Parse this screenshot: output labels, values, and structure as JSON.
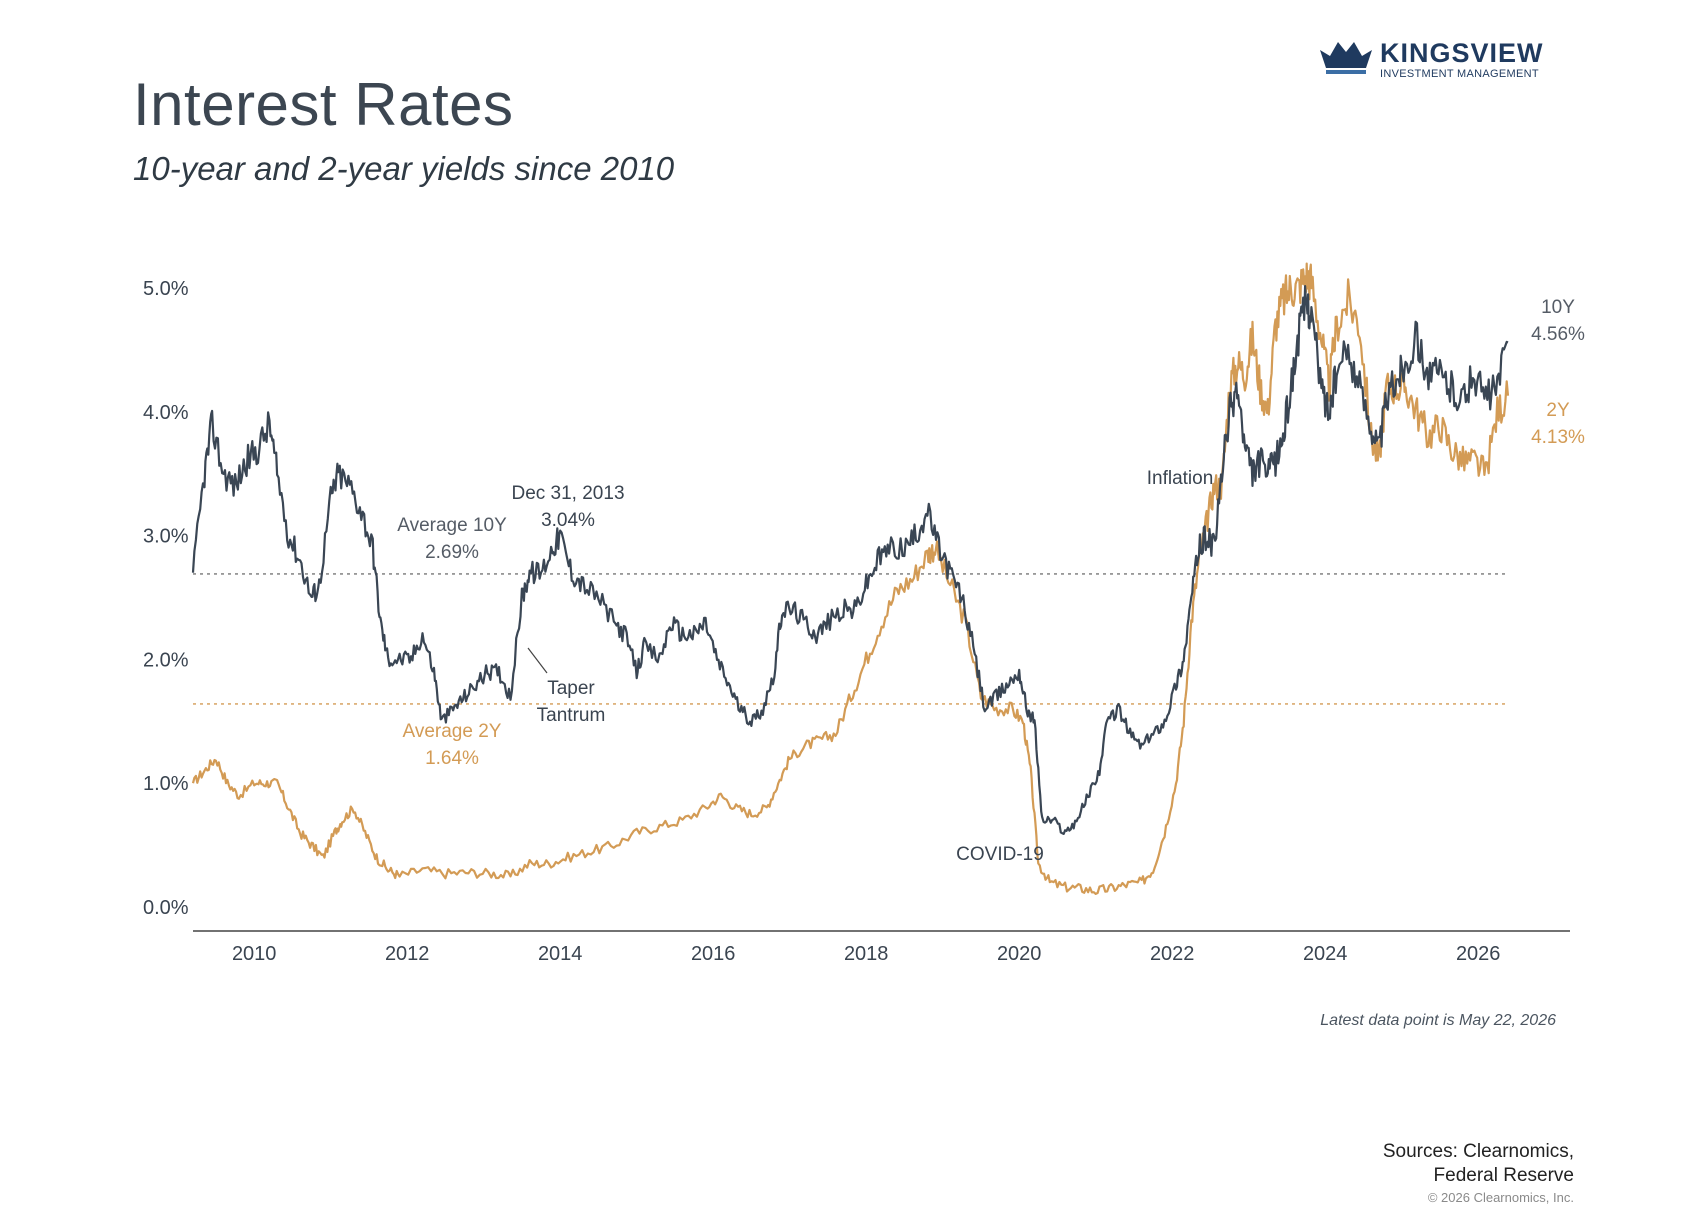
{
  "header": {
    "title": "Interest Rates",
    "subtitle": "10-year and 2-year yields since 2010"
  },
  "logo": {
    "brand": "KINGSVIEW",
    "tagline": "INVESTMENT MANAGEMENT",
    "color": "#1f3a5f"
  },
  "footer": {
    "note": "Latest data point is May 22, 2026",
    "sources_line1": "Sources: Clearnomics,",
    "sources_line2": "Federal Reserve",
    "copyright": "© 2026 Clearnomics, Inc."
  },
  "chart_data": {
    "type": "line",
    "title": "Interest Rates",
    "subtitle": "10-year and 2-year yields since 2010",
    "xlim": [
      2009.2,
      2027.2
    ],
    "ylim": [
      0,
      5.2
    ],
    "x_ticks": [
      2010,
      2012,
      2014,
      2016,
      2018,
      2020,
      2022,
      2024,
      2026
    ],
    "x_tick_labels": [
      "2010",
      "2012",
      "2014",
      "2016",
      "2018",
      "2020",
      "2022",
      "2024",
      "2026"
    ],
    "y_ticks": [
      0,
      1,
      2,
      3,
      4,
      5
    ],
    "y_tick_labels": [
      "0.0%",
      "1.0%",
      "2.0%",
      "3.0%",
      "4.0%",
      "5.0%"
    ],
    "grid": false,
    "series": [
      {
        "name": "10Y",
        "end_label_name": "10Y",
        "end_label_value": "4.56%",
        "color": "#3a4654",
        "x": [
          2009.2,
          2009.35,
          2009.45,
          2009.6,
          2009.75,
          2009.9,
          2010.05,
          2010.2,
          2010.3,
          2010.45,
          2010.6,
          2010.75,
          2010.85,
          2011.0,
          2011.1,
          2011.25,
          2011.4,
          2011.55,
          2011.65,
          2011.75,
          2011.9,
          2012.05,
          2012.2,
          2012.35,
          2012.45,
          2012.6,
          2012.75,
          2012.9,
          2013.05,
          2013.2,
          2013.35,
          2013.5,
          2013.6,
          2013.75,
          2013.9,
          2014.0,
          2014.15,
          2014.3,
          2014.5,
          2014.7,
          2014.85,
          2015.0,
          2015.1,
          2015.3,
          2015.45,
          2015.6,
          2015.75,
          2015.9,
          2016.05,
          2016.2,
          2016.35,
          2016.5,
          2016.65,
          2016.8,
          2016.9,
          2017.05,
          2017.2,
          2017.35,
          2017.5,
          2017.7,
          2017.85,
          2018.0,
          2018.15,
          2018.3,
          2018.5,
          2018.65,
          2018.8,
          2018.95,
          2019.1,
          2019.25,
          2019.4,
          2019.55,
          2019.7,
          2019.85,
          2020.0,
          2020.1,
          2020.2,
          2020.3,
          2020.45,
          2020.6,
          2020.75,
          2020.9,
          2021.05,
          2021.15,
          2021.3,
          2021.45,
          2021.6,
          2021.75,
          2021.9,
          2022.05,
          2022.15,
          2022.25,
          2022.35,
          2022.45,
          2022.55,
          2022.65,
          2022.75,
          2022.85,
          2022.95,
          2023.05,
          2023.15,
          2023.25,
          2023.35,
          2023.45,
          2023.55,
          2023.65,
          2023.75,
          2023.82,
          2023.95,
          2024.05,
          2024.15,
          2024.3,
          2024.45,
          2024.6,
          2024.7,
          2024.8,
          2024.95,
          2025.05,
          2025.2,
          2025.35,
          2025.5,
          2025.65,
          2025.8,
          2025.95,
          2026.1,
          2026.25,
          2026.39
        ],
        "values": [
          2.7,
          3.5,
          3.9,
          3.5,
          3.4,
          3.6,
          3.7,
          3.9,
          3.5,
          3.0,
          2.8,
          2.5,
          2.6,
          3.3,
          3.5,
          3.4,
          3.2,
          2.9,
          2.3,
          2.0,
          2.0,
          2.0,
          2.2,
          1.9,
          1.5,
          1.6,
          1.7,
          1.8,
          1.9,
          1.9,
          1.7,
          2.5,
          2.7,
          2.7,
          2.9,
          3.0,
          2.7,
          2.6,
          2.5,
          2.3,
          2.2,
          1.9,
          2.1,
          2.0,
          2.3,
          2.2,
          2.2,
          2.3,
          2.0,
          1.8,
          1.6,
          1.5,
          1.6,
          1.9,
          2.4,
          2.4,
          2.3,
          2.2,
          2.3,
          2.4,
          2.4,
          2.6,
          2.8,
          2.9,
          2.9,
          3.0,
          3.2,
          2.9,
          2.7,
          2.5,
          2.1,
          1.6,
          1.7,
          1.8,
          1.9,
          1.6,
          1.5,
          0.7,
          0.7,
          0.6,
          0.7,
          0.9,
          1.1,
          1.5,
          1.6,
          1.4,
          1.3,
          1.4,
          1.5,
          1.8,
          2.0,
          2.5,
          2.9,
          3.0,
          2.9,
          3.5,
          4.0,
          4.2,
          3.7,
          3.5,
          3.6,
          3.5,
          3.6,
          3.8,
          4.2,
          4.6,
          4.9,
          4.8,
          4.2,
          4.0,
          4.3,
          4.5,
          4.2,
          3.9,
          3.7,
          4.1,
          4.3,
          4.4,
          4.6,
          4.3,
          4.3,
          4.2,
          4.1,
          4.3,
          4.1,
          4.2,
          4.56
        ]
      },
      {
        "name": "2Y",
        "end_label_name": "2Y",
        "end_label_value": "4.13%",
        "color": "#d39b55",
        "x": [
          2009.2,
          2009.35,
          2009.5,
          2009.65,
          2009.8,
          2010.0,
          2010.15,
          2010.3,
          2010.45,
          2010.6,
          2010.75,
          2010.9,
          2011.05,
          2011.15,
          2011.3,
          2011.45,
          2011.6,
          2011.75,
          2011.9,
          2012.2,
          2012.5,
          2012.8,
          2013.1,
          2013.35,
          2013.6,
          2013.85,
          2014.1,
          2014.4,
          2014.7,
          2015.0,
          2015.3,
          2015.6,
          2015.9,
          2016.1,
          2016.3,
          2016.5,
          2016.7,
          2016.85,
          2017.0,
          2017.2,
          2017.4,
          2017.6,
          2017.8,
          2018.0,
          2018.2,
          2018.4,
          2018.6,
          2018.8,
          2018.9,
          2019.1,
          2019.3,
          2019.5,
          2019.7,
          2019.9,
          2020.05,
          2020.15,
          2020.25,
          2020.4,
          2020.6,
          2020.8,
          2021.0,
          2021.2,
          2021.4,
          2021.6,
          2021.75,
          2021.9,
          2022.05,
          2022.15,
          2022.25,
          2022.35,
          2022.45,
          2022.55,
          2022.65,
          2022.75,
          2022.85,
          2022.95,
          2023.05,
          2023.15,
          2023.25,
          2023.35,
          2023.45,
          2023.55,
          2023.65,
          2023.75,
          2023.82,
          2023.95,
          2024.05,
          2024.15,
          2024.3,
          2024.45,
          2024.6,
          2024.7,
          2024.8,
          2024.95,
          2025.05,
          2025.2,
          2025.35,
          2025.5,
          2025.65,
          2025.8,
          2025.95,
          2026.1,
          2026.25,
          2026.39
        ],
        "values": [
          1.0,
          1.1,
          1.2,
          1.0,
          0.9,
          1.0,
          1.0,
          1.0,
          0.8,
          0.6,
          0.5,
          0.4,
          0.6,
          0.7,
          0.8,
          0.6,
          0.4,
          0.3,
          0.25,
          0.3,
          0.27,
          0.28,
          0.27,
          0.25,
          0.35,
          0.35,
          0.4,
          0.45,
          0.5,
          0.6,
          0.65,
          0.7,
          0.8,
          0.9,
          0.8,
          0.75,
          0.8,
          1.0,
          1.2,
          1.3,
          1.35,
          1.4,
          1.7,
          2.0,
          2.3,
          2.55,
          2.65,
          2.85,
          2.9,
          2.6,
          2.3,
          1.7,
          1.6,
          1.6,
          1.5,
          1.1,
          0.35,
          0.2,
          0.16,
          0.15,
          0.13,
          0.15,
          0.18,
          0.2,
          0.3,
          0.6,
          1.0,
          1.5,
          2.3,
          2.8,
          3.1,
          3.4,
          3.4,
          4.2,
          4.4,
          4.3,
          4.6,
          4.2,
          4.0,
          4.7,
          4.9,
          5.0,
          5.0,
          5.1,
          5.05,
          4.6,
          4.2,
          4.7,
          4.9,
          4.7,
          3.8,
          3.6,
          4.2,
          4.2,
          4.2,
          4.0,
          3.8,
          3.9,
          3.7,
          3.6,
          3.6,
          3.5,
          4.0,
          4.13
        ]
      }
    ],
    "reference_lines": [
      {
        "name": "Average 10Y",
        "label_line1": "Average 10Y",
        "label_line2": "2.69%",
        "value": 2.69,
        "color": "#777777"
      },
      {
        "name": "Average 2Y",
        "label_line1": "Average 2Y",
        "label_line2": "1.64%",
        "value": 1.64,
        "color": "#d39b55"
      }
    ],
    "annotations": [
      {
        "id": "dec2013",
        "line1": "Dec 31, 2013",
        "line2": "3.04%",
        "x": 2013.99,
        "y": 3.04
      },
      {
        "id": "taper",
        "line1": "Taper",
        "line2": "Tantrum",
        "x": 2013.35,
        "y": 1.9
      },
      {
        "id": "covid",
        "line1": "COVID-19",
        "line2": "",
        "x": 2020.15,
        "y": 0.6
      },
      {
        "id": "inflation",
        "line1": "Inflation",
        "line2": "",
        "x": 2022.45,
        "y": 3.5
      }
    ]
  }
}
